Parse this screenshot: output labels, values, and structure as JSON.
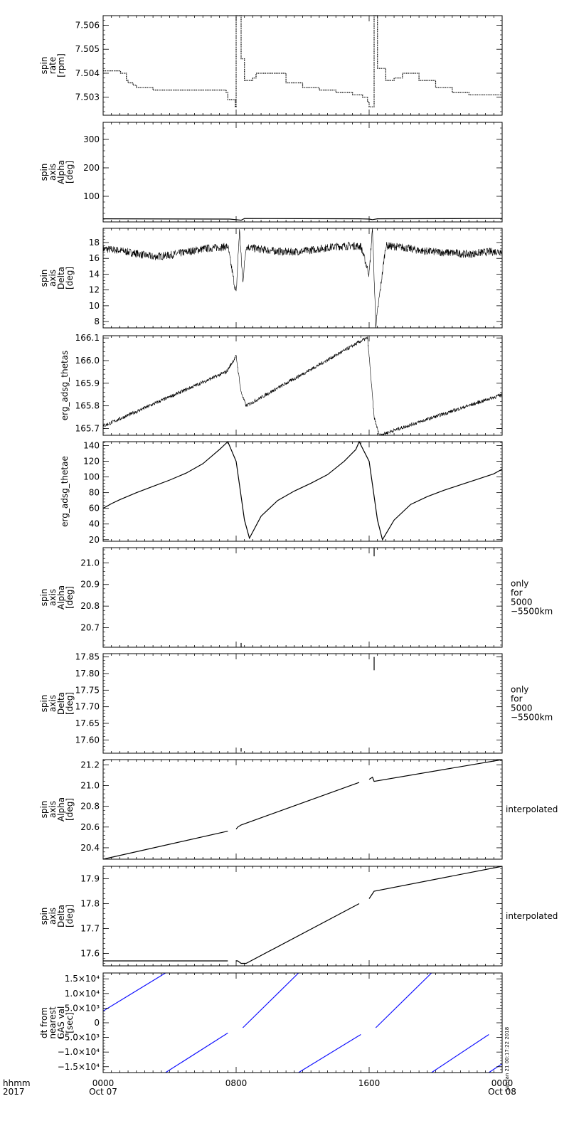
{
  "x_axis": {
    "left_labels": [
      "hhmm",
      "2017"
    ],
    "ticks": [
      {
        "t": 0,
        "lines": [
          "0000",
          "Oct 07"
        ]
      },
      {
        "t": 8,
        "lines": [
          "0800"
        ]
      },
      {
        "t": 16,
        "lines": [
          "1600"
        ]
      },
      {
        "t": 24,
        "lines": [
          "0000",
          "Oct 08"
        ]
      }
    ]
  },
  "colors": {
    "data": "#000000",
    "blue_series": "#1010ff"
  },
  "timestamp_text": "Sun Jan 21 00:17:22 2018",
  "chart_data": [
    {
      "type": "scatter",
      "ylabel": [
        "spin",
        "rate",
        "[rpm]"
      ],
      "ylim": [
        7.50225,
        7.5064
      ],
      "yticks": [
        7.503,
        7.504,
        7.505,
        7.506
      ],
      "ytick_labels": [
        "7.503",
        "7.504",
        "7.505",
        "7.506"
      ],
      "xrange_hours": [
        0,
        24
      ],
      "series": [
        {
          "style": "steps",
          "x": [
            0,
            1.0,
            1.05,
            1.4,
            1.5,
            1.8,
            2.0,
            3.0,
            4.0,
            7.4,
            7.5,
            7.95,
            8.0,
            8.3,
            8.5,
            9.0,
            9.2,
            10.5,
            11.0,
            12.0,
            13.0,
            14.0,
            15.0,
            15.6,
            15.9,
            16.0,
            16.3,
            16.5,
            17.0,
            17.5,
            18.0,
            18.5,
            19.0,
            20.0,
            21.0,
            22.0,
            23.0,
            24.0
          ],
          "y": [
            7.5041,
            7.5041,
            7.504,
            7.5037,
            7.5036,
            7.5035,
            7.5034,
            7.5033,
            7.5033,
            7.5032,
            7.5029,
            7.5026,
            7.5064,
            7.5046,
            7.5037,
            7.5038,
            7.504,
            7.504,
            7.5036,
            7.5034,
            7.5033,
            7.5032,
            7.5031,
            7.503,
            7.5028,
            7.5026,
            7.5064,
            7.5042,
            7.5037,
            7.5038,
            7.504,
            7.504,
            7.5037,
            7.5034,
            7.5032,
            7.5031,
            7.5031,
            7.5031
          ]
        }
      ]
    },
    {
      "type": "scatter",
      "ylabel": [
        "spin",
        "axis",
        "Alpha",
        "[deg]"
      ],
      "ylim": [
        10,
        360
      ],
      "yticks": [
        100,
        200,
        300
      ],
      "ytick_labels": [
        "100",
        "200",
        "300"
      ],
      "xrange_hours": [
        0,
        24
      ],
      "series": [
        {
          "style": "line",
          "x": [
            0,
            7.4,
            7.6,
            8.0,
            8.3,
            8.5,
            15.4,
            16.0,
            16.2,
            16.5,
            24
          ],
          "y": [
            21,
            20,
            20,
            18,
            16,
            22,
            21,
            20,
            18,
            21,
            22
          ]
        }
      ]
    },
    {
      "type": "scatter",
      "ylabel": [
        "spin",
        "axis",
        "Delta",
        "[deg]"
      ],
      "ylim": [
        7.2,
        19.8
      ],
      "yticks": [
        8,
        10,
        12,
        14,
        16,
        18
      ],
      "ytick_labels": [
        "8",
        "10",
        "12",
        "14",
        "16",
        "18"
      ],
      "xrange_hours": [
        0,
        24
      ],
      "series": [
        {
          "style": "noisy",
          "noise": 0.5,
          "x": [
            0,
            1,
            2,
            3,
            4,
            5,
            6,
            7,
            7.5,
            8.0,
            8.2,
            8.4,
            8.6,
            9,
            10,
            11,
            12,
            13,
            14,
            15,
            15.5,
            16.0,
            16.2,
            16.4,
            17,
            18,
            19,
            20,
            21,
            22,
            23,
            24
          ],
          "y": [
            17.2,
            17.0,
            16.6,
            16.2,
            16.4,
            16.8,
            17.2,
            17.4,
            17.5,
            11.5,
            19.5,
            13.0,
            17.5,
            17.3,
            17.0,
            16.8,
            16.9,
            17.2,
            17.5,
            17.6,
            17.5,
            14.0,
            19.8,
            7.5,
            17.6,
            17.4,
            17.0,
            16.8,
            16.7,
            16.5,
            16.8,
            16.9
          ]
        }
      ]
    },
    {
      "type": "scatter",
      "ylabel": [
        "erg_adsg_thetas"
      ],
      "ylim": [
        165.67,
        166.11
      ],
      "yticks": [
        165.7,
        165.8,
        165.9,
        166.0,
        166.1
      ],
      "ytick_labels": [
        "165.7",
        "165.8",
        "165.9",
        "166.0",
        "166.1"
      ],
      "xrange_hours": [
        0,
        24
      ],
      "series": [
        {
          "style": "noisy",
          "noise": 0.008,
          "x": [
            0,
            7.4,
            7.5,
            8.0,
            8.3,
            8.6,
            15.6,
            15.9,
            16.0,
            16.3,
            16.6,
            24
          ],
          "y": [
            165.71,
            165.95,
            165.96,
            166.02,
            165.86,
            165.8,
            166.09,
            166.1,
            166.02,
            165.75,
            165.67,
            165.85
          ]
        }
      ]
    },
    {
      "type": "line",
      "ylabel": [
        "erg_adsg_thetae"
      ],
      "ylim": [
        18,
        145
      ],
      "yticks": [
        20,
        40,
        60,
        80,
        100,
        120,
        140
      ],
      "ytick_labels": [
        "20",
        "40",
        "60",
        "80",
        "100",
        "120",
        "140"
      ],
      "xrange_hours": [
        0,
        24
      ],
      "series": [
        {
          "style": "line",
          "x": [
            0,
            0.5,
            1,
            2,
            3,
            4,
            5,
            6,
            7,
            7.5,
            8.0,
            8.2,
            8.5,
            8.8,
            9.5,
            10.5,
            11.5,
            12.5,
            13.5,
            14.5,
            15.2,
            15.4,
            16.0,
            16.2,
            16.5,
            16.8,
            17.5,
            18.5,
            19.5,
            20.5,
            21.5,
            22.5,
            23.5,
            24
          ],
          "y": [
            60,
            66,
            71,
            80,
            88,
            96,
            105,
            117,
            135,
            145,
            120,
            90,
            45,
            22,
            50,
            70,
            82,
            92,
            103,
            120,
            135,
            145,
            120,
            90,
            45,
            20,
            45,
            65,
            75,
            83,
            90,
            97,
            104,
            110
          ]
        }
      ]
    },
    {
      "type": "scatter",
      "ylabel": [
        "spin",
        "axis",
        "Alpha",
        "[deg]"
      ],
      "ylim": [
        20.61,
        21.07
      ],
      "yticks": [
        20.7,
        20.8,
        20.9,
        21.0
      ],
      "ytick_labels": [
        "20.7",
        "20.8",
        "20.9",
        "21.0"
      ],
      "right_label": [
        "only",
        "for",
        "5000",
        "−5500km"
      ],
      "xrange_hours": [
        0,
        24
      ],
      "series": [
        {
          "style": "vsegs",
          "segs": [
            [
              8.3,
              20.61,
              20.63
            ],
            [
              16.3,
              21.03,
              21.07
            ]
          ]
        }
      ]
    },
    {
      "type": "scatter",
      "ylabel": [
        "spin",
        "axis",
        "Delta",
        "[deg]"
      ],
      "ylim": [
        17.56,
        17.86
      ],
      "yticks": [
        17.6,
        17.65,
        17.7,
        17.75,
        17.8,
        17.85
      ],
      "ytick_labels": [
        "17.60",
        "17.65",
        "17.70",
        "17.75",
        "17.80",
        "17.85"
      ],
      "right_label": [
        "only",
        "for",
        "5000",
        "−5500km"
      ],
      "xrange_hours": [
        0,
        24
      ],
      "series": [
        {
          "style": "vsegs",
          "segs": [
            [
              8.3,
              17.565,
              17.575
            ],
            [
              16.3,
              17.81,
              17.85
            ]
          ]
        }
      ]
    },
    {
      "type": "line",
      "ylabel": [
        "spin",
        "axis",
        "Alpha",
        "[deg]"
      ],
      "ylim": [
        20.29,
        21.25
      ],
      "yticks": [
        20.4,
        20.6,
        20.8,
        21.0,
        21.2
      ],
      "ytick_labels": [
        "20.4",
        "20.6",
        "20.8",
        "21.0",
        "21.2"
      ],
      "right_label": [
        "interpolated"
      ],
      "xrange_hours": [
        0,
        24
      ],
      "series": [
        {
          "style": "line",
          "x": [
            0,
            7.5,
            7.55,
            8.0,
            8.1,
            8.3,
            15.4,
            15.5,
            16.0,
            16.2,
            16.3,
            24
          ],
          "y": [
            20.29,
            20.56,
            null,
            20.58,
            20.6,
            20.62,
            21.03,
            null,
            21.06,
            21.08,
            21.04,
            21.25
          ]
        }
      ]
    },
    {
      "type": "line",
      "ylabel": [
        "spin",
        "axis",
        "Delta",
        "[deg]"
      ],
      "ylim": [
        17.55,
        17.95
      ],
      "yticks": [
        17.6,
        17.7,
        17.8,
        17.9
      ],
      "ytick_labels": [
        "17.6",
        "17.7",
        "17.8",
        "17.9"
      ],
      "right_label": [
        "interpolated"
      ],
      "xrange_hours": [
        0,
        24
      ],
      "series": [
        {
          "style": "line",
          "x": [
            0,
            7.5,
            7.55,
            8.0,
            8.1,
            8.3,
            8.6,
            15.4,
            15.5,
            16.0,
            16.2,
            16.3,
            24
          ],
          "y": [
            17.57,
            17.57,
            null,
            17.57,
            17.57,
            17.56,
            17.56,
            17.8,
            null,
            17.82,
            17.84,
            17.85,
            17.95
          ]
        }
      ]
    },
    {
      "type": "line",
      "ylabel": [
        "dt from",
        "nearest",
        "GAS val",
        "[sec]"
      ],
      "ylim": [
        -17000,
        17000
      ],
      "yticks": [
        -15000,
        -10000,
        -5000,
        0,
        5000,
        10000,
        15000
      ],
      "ytick_labels": [
        "−1.5×10⁴",
        "−1.0×10⁴",
        "−5.0×10³",
        "0",
        "5.0×10³",
        "1.0×10⁴",
        "1.5×10⁴"
      ],
      "xrange_hours": [
        0,
        24
      ],
      "series": [
        {
          "style": "line",
          "color": "#1010ff",
          "x": [
            0,
            3.75
          ],
          "y": [
            4000,
            17000
          ]
        },
        {
          "style": "line",
          "color": "#1010ff",
          "x": [
            3.75,
            7.5
          ],
          "y": [
            -17000,
            -3500
          ]
        },
        {
          "style": "line",
          "color": "#1010ff",
          "x": [
            8.4,
            11.75
          ],
          "y": [
            -1700,
            17000
          ]
        },
        {
          "style": "line",
          "color": "#1010ff",
          "x": [
            11.75,
            15.5
          ],
          "y": [
            -17000,
            -4000
          ]
        },
        {
          "style": "line",
          "color": "#1010ff",
          "x": [
            16.4,
            19.75
          ],
          "y": [
            -1700,
            17000
          ]
        },
        {
          "style": "line",
          "color": "#1010ff",
          "x": [
            19.75,
            23.2
          ],
          "y": [
            -17000,
            -4000
          ]
        },
        {
          "style": "line",
          "color": "#1010ff",
          "x": [
            23.2,
            24
          ],
          "y": [
            -17000,
            -14000
          ]
        }
      ]
    }
  ]
}
